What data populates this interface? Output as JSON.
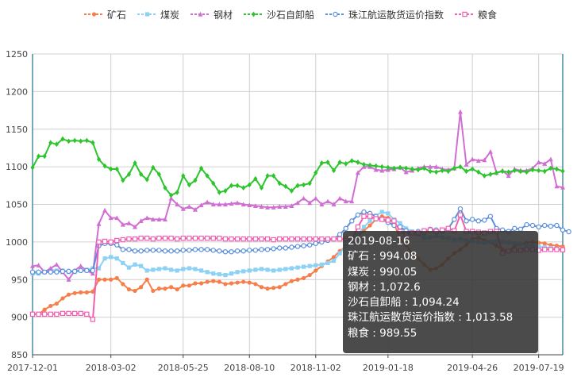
{
  "chart_data": {
    "type": "line",
    "legend_position": "top-center",
    "y_axis": {
      "ylim": [
        850,
        1250
      ],
      "ticks": [
        "850",
        "900",
        "950",
        "1000",
        "1050",
        "1100",
        "1150",
        "1200",
        "1250"
      ],
      "grid": true
    },
    "x_axis": {
      "range": [
        "2017-12-01",
        "2019-08-16"
      ],
      "tick_labels": [
        "2017-12-01",
        "2018-03-02",
        "2018-05-25",
        "2018-08-10",
        "2018-11-02",
        "2019-01-18",
        "2019-04-26",
        "2019-07-19"
      ],
      "tick_indices": [
        0,
        13,
        25,
        36,
        47,
        59,
        73,
        84
      ]
    },
    "series": [
      {
        "name": "矿石",
        "color": "#f57e4a",
        "symbol": "circle",
        "values": [
          904,
          904,
          910,
          915,
          918,
          925,
          930,
          932,
          933,
          933,
          934,
          950,
          950,
          950,
          952,
          944,
          937,
          935,
          940,
          950,
          935,
          938,
          938,
          940,
          937,
          942,
          942,
          945,
          945,
          947,
          948,
          947,
          944,
          945,
          946,
          947,
          946,
          944,
          940,
          938,
          939,
          940,
          944,
          948,
          950,
          952,
          956,
          962,
          968,
          974,
          980,
          988,
          994,
          1000,
          1008,
          1015,
          1022,
          1030,
          1034,
          1032,
          1024,
          1005,
          996,
          985,
          978,
          970,
          963,
          965,
          970,
          978,
          985,
          990,
          996,
          1004,
          1006,
          1002,
          1000,
          995,
          990,
          988,
          995,
          997,
          999,
          1000,
          999,
          998,
          996,
          995,
          994.08
        ]
      },
      {
        "name": "煤炭",
        "color": "#8dd1f5",
        "symbol": "rect",
        "values": [
          958,
          958,
          960,
          963,
          962,
          962,
          960,
          960,
          962,
          963,
          965,
          965,
          978,
          980,
          978,
          972,
          966,
          970,
          968,
          962,
          963,
          964,
          965,
          963,
          962,
          964,
          965,
          964,
          962,
          960,
          958,
          957,
          956,
          958,
          960,
          961,
          962,
          963,
          964,
          963,
          962,
          963,
          964,
          965,
          966,
          967,
          968,
          969,
          970,
          972,
          975,
          985,
          995,
          1000,
          1010,
          1020,
          1028,
          1035,
          1040,
          1038,
          1030,
          1025,
          1018,
          1014,
          1010,
          1005,
          1006,
          1008,
          1006,
          1005,
          1003,
          1004,
          1002,
          1001,
          1000,
          999,
          1000,
          1001,
          1000,
          999,
          998,
          997,
          996,
          995,
          994,
          993,
          992,
          991,
          990.05
        ]
      },
      {
        "name": "钢材",
        "color": "#d16ed3",
        "symbol": "triangle",
        "values": [
          968,
          969,
          960,
          965,
          970,
          960,
          950,
          962,
          968,
          962,
          958,
          1024,
          1042,
          1032,
          1032,
          1023,
          1025,
          1020,
          1028,
          1032,
          1030,
          1030,
          1030,
          1058,
          1050,
          1044,
          1047,
          1043,
          1049,
          1053,
          1050,
          1050,
          1050,
          1051,
          1052,
          1050,
          1049,
          1048,
          1047,
          1046,
          1046,
          1047,
          1047,
          1048,
          1052,
          1058,
          1052,
          1058,
          1050,
          1054,
          1050,
          1058,
          1054,
          1054,
          1092,
          1100,
          1100,
          1096,
          1095,
          1096,
          1097,
          1099,
          1093,
          1095,
          1098,
          1100,
          1100,
          1100,
          1097,
          1096,
          1098,
          1173,
          1103,
          1110,
          1108,
          1109,
          1120,
          1092,
          1095,
          1088,
          1097,
          1095,
          1095,
          1098,
          1106,
          1104,
          1110,
          1074,
          1072.6
        ]
      },
      {
        "name": "沙石自卸船",
        "color": "#2ec42e",
        "symbol": "diamond",
        "values": [
          1099,
          1114,
          1114,
          1132,
          1130,
          1137,
          1134,
          1135,
          1134,
          1135,
          1132,
          1110,
          1101,
          1097,
          1097,
          1082,
          1090,
          1105,
          1090,
          1083,
          1099,
          1090,
          1072,
          1062,
          1066,
          1088,
          1076,
          1082,
          1098,
          1088,
          1078,
          1066,
          1068,
          1075,
          1075,
          1072,
          1076,
          1084,
          1072,
          1088,
          1088,
          1078,
          1074,
          1068,
          1075,
          1076,
          1078,
          1092,
          1105,
          1106,
          1095,
          1106,
          1104,
          1108,
          1106,
          1103,
          1102,
          1101,
          1100,
          1099,
          1098,
          1099,
          1098,
          1097,
          1096,
          1098,
          1094,
          1093,
          1095,
          1094,
          1098,
          1100,
          1094,
          1097,
          1093,
          1088,
          1090,
          1092,
          1094,
          1093,
          1095,
          1094,
          1093,
          1096,
          1095,
          1094,
          1098,
          1097,
          1094.24
        ]
      },
      {
        "name": "珠江航运散货运价指数",
        "color": "#5b8fdc",
        "symbol": "emptyCircle",
        "values": [
          960,
          960,
          960,
          960,
          960,
          961,
          961,
          961,
          962,
          962,
          962,
          995,
          998,
          998,
          996,
          990,
          990,
          988,
          988,
          989,
          989,
          989,
          988,
          988,
          988,
          989,
          989,
          990,
          990,
          990,
          989,
          988,
          987,
          987,
          988,
          988,
          989,
          989,
          990,
          990,
          991,
          992,
          992,
          993,
          994,
          995,
          996,
          998,
          1000,
          1002,
          1004,
          1010,
          1018,
          1028,
          1036,
          1040,
          1038,
          1034,
          1030,
          1026,
          1022,
          1020,
          1015,
          1012,
          1014,
          1012,
          1017,
          1016,
          1014,
          1018,
          1030,
          1044,
          1028,
          1030,
          1028,
          1029,
          1034,
          1018,
          1016,
          1014,
          1018,
          1017,
          1023,
          1022,
          1020,
          1022,
          1021,
          1022,
          1016,
          1013.58
        ]
      },
      {
        "name": "粮食",
        "color": "#f25fb1",
        "symbol": "emptyRect",
        "values": [
          904,
          904,
          904,
          904,
          904,
          905,
          905,
          905,
          905,
          904,
          897,
          1000,
          1001,
          1000,
          1002,
          1003,
          1004,
          1004,
          1005,
          1005,
          1004,
          1005,
          1005,
          1005,
          1004,
          1005,
          1005,
          1005,
          1005,
          1005,
          1005,
          1005,
          1004,
          1004,
          1004,
          1004,
          1004,
          1004,
          1004,
          1004,
          1003,
          1004,
          1004,
          1004,
          1004,
          1004,
          1004,
          1004,
          1004,
          1004,
          1004,
          1004,
          1004,
          1003,
          1020,
          1034,
          1034,
          1031,
          1030,
          1029,
          1028,
          1014,
          1010,
          1012,
          1012,
          1015,
          1016,
          1014,
          1016,
          1018,
          1015,
          1036,
          1014,
          1014,
          1013,
          1012,
          1014,
          1014,
          985,
          988,
          989,
          989,
          990,
          990,
          989,
          990,
          990,
          990,
          989.55
        ]
      }
    ],
    "tooltip": {
      "date": "2019-08-16",
      "rows": [
        {
          "label": "矿石",
          "value": "994.08"
        },
        {
          "label": "煤炭",
          "value": "990.05"
        },
        {
          "label": "钢材",
          "value": "1,072.6"
        },
        {
          "label": "沙石自卸船",
          "value": "1,094.24"
        },
        {
          "label": "珠江航运散货运价指数",
          "value": "1,013.58"
        },
        {
          "label": "粮食",
          "value": "989.55"
        }
      ]
    }
  }
}
